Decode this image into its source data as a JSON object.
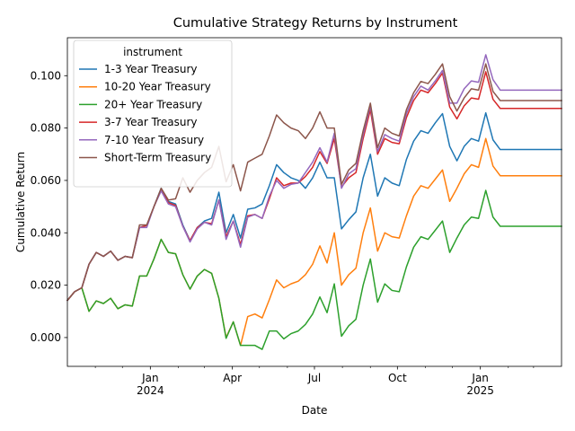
{
  "chart_data": {
    "type": "line",
    "title": "Cumulative Strategy Returns by Instrument",
    "xlabel": "Date",
    "ylabel": "Cumulative Return",
    "xlim": [
      "2023-10-01",
      "2025-04-01"
    ],
    "ylim": [
      -0.011,
      0.1145
    ],
    "yticks": [
      0.0,
      0.02,
      0.04,
      0.06,
      0.08,
      0.1
    ],
    "ytick_labels": [
      "0.000",
      "0.020",
      "0.040",
      "0.060",
      "0.080",
      "0.100"
    ],
    "xticks": [
      {
        "date": "2024-01-01",
        "label": "Jan",
        "sublabel": "2024"
      },
      {
        "date": "2024-04-01",
        "label": "Apr",
        "sublabel": ""
      },
      {
        "date": "2024-07-01",
        "label": "Jul",
        "sublabel": ""
      },
      {
        "date": "2024-10-01",
        "label": "Oct",
        "sublabel": ""
      },
      {
        "date": "2025-01-01",
        "label": "Jan",
        "sublabel": "2025"
      }
    ],
    "minor_xticks": [
      "2023-11-01",
      "2023-12-01",
      "2024-02-01",
      "2024-03-01",
      "2024-05-01",
      "2024-06-01",
      "2024-08-01",
      "2024-09-01",
      "2024-11-01",
      "2024-12-01",
      "2025-02-01",
      "2025-03-01"
    ],
    "grid": false,
    "legend": {
      "title": "instrument",
      "placement": "top-left"
    },
    "x": [
      "2023-10-01",
      "2023-10-09",
      "2023-10-17",
      "2023-10-25",
      "2023-11-02",
      "2023-11-10",
      "2023-11-18",
      "2023-11-26",
      "2023-12-04",
      "2023-12-12",
      "2023-12-20",
      "2023-12-28",
      "2024-01-05",
      "2024-01-13",
      "2024-01-21",
      "2024-01-29",
      "2024-02-06",
      "2024-02-14",
      "2024-02-22",
      "2024-03-01",
      "2024-03-09",
      "2024-03-17",
      "2024-03-25",
      "2024-04-02",
      "2024-04-10",
      "2024-04-18",
      "2024-04-26",
      "2024-05-04",
      "2024-05-12",
      "2024-05-20",
      "2024-05-28",
      "2024-06-05",
      "2024-06-13",
      "2024-06-21",
      "2024-06-29",
      "2024-07-07",
      "2024-07-15",
      "2024-07-23",
      "2024-07-31",
      "2024-08-08",
      "2024-08-16",
      "2024-08-24",
      "2024-09-01",
      "2024-09-09",
      "2024-09-17",
      "2024-09-25",
      "2024-10-03",
      "2024-10-11",
      "2024-10-19",
      "2024-10-27",
      "2024-11-04",
      "2024-11-12",
      "2024-11-20",
      "2024-11-28",
      "2024-12-06",
      "2024-12-14",
      "2024-12-22",
      "2024-12-30",
      "2025-01-07",
      "2025-01-15",
      "2025-01-23",
      "2025-01-31",
      "2025-02-08",
      "2025-02-16",
      "2025-02-24",
      "2025-03-04",
      "2025-03-12",
      "2025-03-20",
      "2025-03-28",
      "2025-04-01"
    ],
    "series": [
      {
        "name": "1-3 Year Treasury",
        "color": "#1f77b4",
        "values": [
          0.0142,
          0.0175,
          0.019,
          0.028,
          0.0325,
          0.031,
          0.033,
          0.0295,
          0.031,
          0.0305,
          0.042,
          0.0428,
          0.05,
          0.057,
          0.052,
          0.051,
          0.043,
          0.037,
          0.042,
          0.0445,
          0.0455,
          0.0555,
          0.04,
          0.047,
          0.038,
          0.049,
          0.0495,
          0.051,
          0.058,
          0.066,
          0.063,
          0.061,
          0.06,
          0.057,
          0.061,
          0.067,
          0.061,
          0.061,
          0.0415,
          0.045,
          0.048,
          0.061,
          0.07,
          0.054,
          0.061,
          0.059,
          0.058,
          0.068,
          0.075,
          0.079,
          0.078,
          0.082,
          0.0855,
          0.073,
          0.0675,
          0.073,
          0.076,
          0.075,
          0.0858,
          0.0755,
          0.0718,
          0.0718,
          0.0718,
          0.0718,
          0.0718,
          0.0718,
          0.0718,
          0.0718,
          0.0718,
          0.0718
        ]
      },
      {
        "name": "10-20 Year Treasury",
        "color": "#ff7f0e",
        "values": [
          0.0142,
          0.0175,
          0.019,
          0.01,
          0.014,
          0.013,
          0.015,
          0.011,
          0.0125,
          0.012,
          0.0235,
          0.0235,
          0.03,
          0.0375,
          0.0325,
          0.032,
          0.024,
          0.0185,
          0.0235,
          0.026,
          0.0245,
          0.015,
          0.0,
          0.006,
          -0.003,
          0.008,
          0.009,
          0.0075,
          0.0145,
          0.022,
          0.019,
          0.0205,
          0.0215,
          0.024,
          0.028,
          0.035,
          0.0285,
          0.04,
          0.02,
          0.024,
          0.0265,
          0.04,
          0.0495,
          0.033,
          0.04,
          0.0385,
          0.038,
          0.0465,
          0.054,
          0.058,
          0.057,
          0.0605,
          0.064,
          0.052,
          0.057,
          0.0625,
          0.066,
          0.065,
          0.076,
          0.0655,
          0.0618,
          0.0618,
          0.0618,
          0.0618,
          0.0618,
          0.0618,
          0.0618,
          0.0618,
          0.0618,
          0.0618
        ]
      },
      {
        "name": "20+ Year Treasury",
        "color": "#2ca02c",
        "values": [
          0.0142,
          0.0175,
          0.019,
          0.01,
          0.014,
          0.013,
          0.015,
          0.011,
          0.0125,
          0.012,
          0.0235,
          0.0235,
          0.03,
          0.0375,
          0.0325,
          0.032,
          0.024,
          0.0185,
          0.0235,
          0.026,
          0.0245,
          0.015,
          -0.0003,
          0.006,
          -0.003,
          -0.003,
          -0.003,
          -0.0045,
          0.0025,
          0.0025,
          -0.0005,
          0.0015,
          0.0025,
          0.005,
          0.009,
          0.0155,
          0.0095,
          0.0205,
          0.0005,
          0.0045,
          0.007,
          0.02,
          0.03,
          0.0135,
          0.0205,
          0.018,
          0.0175,
          0.027,
          0.0345,
          0.0385,
          0.0375,
          0.041,
          0.0445,
          0.0325,
          0.038,
          0.043,
          0.046,
          0.0455,
          0.0562,
          0.046,
          0.0425,
          0.0425,
          0.0425,
          0.0425,
          0.0425,
          0.0425,
          0.0425,
          0.0425,
          0.0425,
          0.0425
        ]
      },
      {
        "name": "3-7 Year Treasury",
        "color": "#d62728",
        "values": [
          0.0142,
          0.0175,
          0.019,
          0.028,
          0.0325,
          0.031,
          0.033,
          0.0295,
          0.031,
          0.0305,
          0.042,
          0.0428,
          0.05,
          0.0565,
          0.0515,
          0.0505,
          0.0425,
          0.037,
          0.042,
          0.044,
          0.0435,
          0.0525,
          0.0385,
          0.0445,
          0.0355,
          0.0465,
          0.047,
          0.0455,
          0.053,
          0.061,
          0.058,
          0.059,
          0.059,
          0.0615,
          0.065,
          0.071,
          0.0665,
          0.076,
          0.0575,
          0.061,
          0.063,
          0.076,
          0.087,
          0.07,
          0.076,
          0.0745,
          0.074,
          0.084,
          0.0905,
          0.0945,
          0.0935,
          0.097,
          0.101,
          0.088,
          0.0835,
          0.0885,
          0.0915,
          0.091,
          0.1015,
          0.091,
          0.0875,
          0.0875,
          0.0875,
          0.0875,
          0.0875,
          0.0875,
          0.0875,
          0.0875,
          0.0875,
          0.0875
        ]
      },
      {
        "name": "7-10 Year Treasury",
        "color": "#9467bd",
        "values": [
          0.0142,
          0.0175,
          0.019,
          0.028,
          0.0325,
          0.031,
          0.033,
          0.0295,
          0.031,
          0.0305,
          0.042,
          0.042,
          0.05,
          0.056,
          0.051,
          0.05,
          0.0425,
          0.0365,
          0.0415,
          0.044,
          0.043,
          0.0525,
          0.0375,
          0.0445,
          0.0345,
          0.046,
          0.047,
          0.0455,
          0.054,
          0.06,
          0.057,
          0.0585,
          0.059,
          0.063,
          0.067,
          0.0725,
          0.067,
          0.078,
          0.057,
          0.0625,
          0.0645,
          0.0775,
          0.0885,
          0.071,
          0.0775,
          0.076,
          0.075,
          0.0855,
          0.092,
          0.096,
          0.0945,
          0.098,
          0.102,
          0.0895,
          0.0895,
          0.095,
          0.098,
          0.0975,
          0.108,
          0.0985,
          0.0945,
          0.0945,
          0.0945,
          0.0945,
          0.0945,
          0.0945,
          0.0945,
          0.0945,
          0.0945,
          0.0945
        ]
      },
      {
        "name": "Short-Term Treasury",
        "color": "#8c564b",
        "values": [
          0.0142,
          0.0175,
          0.019,
          0.028,
          0.0325,
          0.031,
          0.033,
          0.0295,
          0.031,
          0.0305,
          0.043,
          0.043,
          0.05,
          0.057,
          0.0525,
          0.053,
          0.061,
          0.0555,
          0.06,
          0.063,
          0.065,
          0.073,
          0.0595,
          0.066,
          0.056,
          0.067,
          0.0685,
          0.07,
          0.077,
          0.085,
          0.082,
          0.08,
          0.079,
          0.076,
          0.08,
          0.0862,
          0.08,
          0.08,
          0.0585,
          0.064,
          0.0665,
          0.079,
          0.0895,
          0.0725,
          0.08,
          0.078,
          0.077,
          0.087,
          0.0935,
          0.0978,
          0.097,
          0.1005,
          0.1045,
          0.092,
          0.0865,
          0.0915,
          0.095,
          0.0945,
          0.1045,
          0.094,
          0.0905,
          0.0905,
          0.0905,
          0.0905,
          0.0905,
          0.0905,
          0.0905,
          0.0905,
          0.0905,
          0.0905
        ]
      }
    ]
  }
}
